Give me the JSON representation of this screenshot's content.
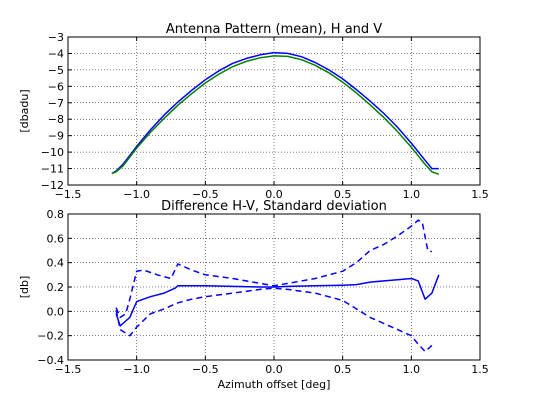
{
  "chart_data": [
    {
      "type": "line",
      "title": "Antenna Pattern (mean), H and V",
      "xlabel": "",
      "ylabel": "[dbadu]",
      "xlim": [
        -1.5,
        1.5
      ],
      "ylim": [
        -12,
        -3
      ],
      "xticks": [
        -1.5,
        -1.0,
        -0.5,
        0.0,
        0.5,
        1.0,
        1.5
      ],
      "xtick_labels": [
        "−1.5",
        "−1.0",
        "−0.5",
        "0.0",
        "0.5",
        "1.0",
        "1.5"
      ],
      "yticks": [
        -3,
        -4,
        -5,
        -6,
        -7,
        -8,
        -9,
        -10,
        -11,
        -12
      ],
      "ytick_labels": [
        "−3",
        "−4",
        "−5",
        "−6",
        "−7",
        "−8",
        "−9",
        "−10",
        "−11",
        "−12"
      ],
      "grid": true,
      "series": [
        {
          "color": "#0000ff",
          "style": "solid",
          "x": [
            -1.18,
            -1.15,
            -1.1,
            -1.0,
            -0.9,
            -0.8,
            -0.7,
            -0.6,
            -0.5,
            -0.4,
            -0.3,
            -0.2,
            -0.1,
            0.0,
            0.1,
            0.2,
            0.3,
            0.4,
            0.5,
            0.6,
            0.7,
            0.8,
            0.9,
            1.0,
            1.1,
            1.15,
            1.2
          ],
          "y": [
            -11.3,
            -11.15,
            -10.75,
            -9.65,
            -8.65,
            -7.75,
            -6.95,
            -6.25,
            -5.6,
            -5.05,
            -4.6,
            -4.3,
            -4.08,
            -3.95,
            -4.0,
            -4.2,
            -4.55,
            -5.0,
            -5.55,
            -6.2,
            -6.9,
            -7.65,
            -8.5,
            -9.45,
            -10.5,
            -11.0,
            -11.0
          ]
        },
        {
          "color": "#008000",
          "style": "solid",
          "x": [
            -1.18,
            -1.15,
            -1.1,
            -1.0,
            -0.9,
            -0.8,
            -0.7,
            -0.6,
            -0.5,
            -0.4,
            -0.3,
            -0.2,
            -0.1,
            0.0,
            0.1,
            0.2,
            0.3,
            0.4,
            0.5,
            0.6,
            0.7,
            0.8,
            0.9,
            1.0,
            1.1,
            1.15,
            1.2
          ],
          "y": [
            -11.3,
            -11.2,
            -10.85,
            -9.75,
            -8.8,
            -7.95,
            -7.15,
            -6.45,
            -5.8,
            -5.25,
            -4.8,
            -4.48,
            -4.26,
            -4.15,
            -4.18,
            -4.38,
            -4.72,
            -5.18,
            -5.75,
            -6.4,
            -7.12,
            -7.9,
            -8.75,
            -9.7,
            -10.75,
            -11.2,
            -11.35
          ]
        }
      ]
    },
    {
      "type": "line",
      "title": "Difference H-V, Standard deviation",
      "xlabel": "Azimuth offset [deg]",
      "ylabel": "[db]",
      "xlim": [
        -1.5,
        1.5
      ],
      "ylim": [
        -0.4,
        0.8
      ],
      "xticks": [
        -1.5,
        -1.0,
        -0.5,
        0.0,
        0.5,
        1.0,
        1.5
      ],
      "xtick_labels": [
        "−1.5",
        "−1.0",
        "−0.5",
        "0.0",
        "0.5",
        "1.0",
        "1.5"
      ],
      "yticks": [
        0.8,
        0.6,
        0.4,
        0.2,
        0.0,
        -0.2,
        -0.4
      ],
      "ytick_labels": [
        "0.8",
        "0.6",
        "0.4",
        "0.2",
        "0.0",
        "−0.2",
        "−0.4"
      ],
      "grid": true,
      "series": [
        {
          "color": "#0000ff",
          "style": "solid",
          "x": [
            -1.15,
            -1.12,
            -1.1,
            -1.05,
            -1.0,
            -0.9,
            -0.8,
            -0.72,
            -0.7,
            -0.6,
            -0.5,
            -0.3,
            -0.1,
            0.0,
            0.1,
            0.3,
            0.5,
            0.6,
            0.7,
            0.8,
            0.9,
            1.0,
            1.05,
            1.1,
            1.15,
            1.2
          ],
          "y": [
            -0.02,
            -0.12,
            -0.1,
            -0.05,
            0.08,
            0.12,
            0.15,
            0.19,
            0.21,
            0.21,
            0.21,
            0.205,
            0.2,
            0.2,
            0.205,
            0.21,
            0.215,
            0.22,
            0.24,
            0.25,
            0.26,
            0.27,
            0.25,
            0.1,
            0.15,
            0.3
          ]
        },
        {
          "color": "#0000ff",
          "style": "dashed",
          "x": [
            -1.15,
            -1.12,
            -1.08,
            -1.05,
            -1.0,
            -0.95,
            -0.85,
            -0.75,
            -0.7,
            -0.6,
            -0.5,
            -0.3,
            -0.1,
            0.0,
            0.1,
            0.3,
            0.5,
            0.6,
            0.7,
            0.8,
            0.9,
            1.0,
            1.05,
            1.08,
            1.12,
            1.15
          ],
          "y": [
            0.03,
            -0.05,
            -0.02,
            0.1,
            0.33,
            0.34,
            0.3,
            0.27,
            0.39,
            0.34,
            0.3,
            0.27,
            0.23,
            0.21,
            0.23,
            0.27,
            0.33,
            0.4,
            0.5,
            0.55,
            0.62,
            0.7,
            0.75,
            0.73,
            0.5,
            0.49
          ]
        },
        {
          "color": "#0000ff",
          "style": "dashed",
          "x": [
            -1.15,
            -1.12,
            -1.08,
            -1.05,
            -1.0,
            -0.9,
            -0.8,
            -0.7,
            -0.6,
            -0.5,
            -0.3,
            -0.1,
            0.0,
            0.1,
            0.3,
            0.5,
            0.6,
            0.7,
            0.8,
            0.9,
            1.0,
            1.05,
            1.1,
            1.15
          ],
          "y": [
            0.01,
            -0.15,
            -0.18,
            -0.2,
            -0.13,
            -0.02,
            0.02,
            0.07,
            0.1,
            0.12,
            0.15,
            0.18,
            0.19,
            0.18,
            0.15,
            0.09,
            0.02,
            -0.05,
            -0.1,
            -0.15,
            -0.2,
            -0.27,
            -0.33,
            -0.28
          ]
        }
      ]
    }
  ]
}
